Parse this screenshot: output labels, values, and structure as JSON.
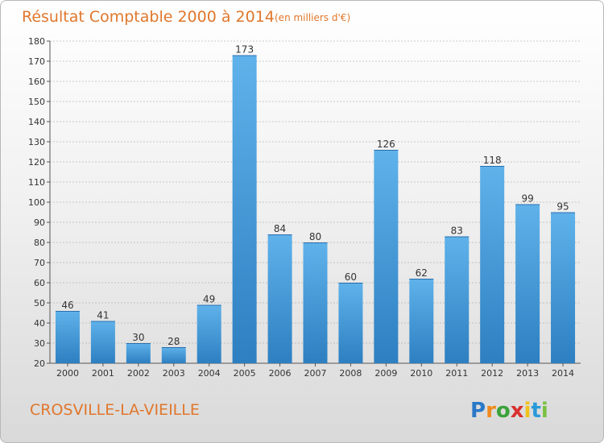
{
  "title": "Résultat Comptable 2000 à 2014",
  "subtitle": "(en milliers d'€)",
  "commune": "CROSVILLE-LA-VIEILLE",
  "logo": {
    "text": "Proxiti",
    "letter_colors": [
      "#2a78c8",
      "#f08a1c",
      "#3aa23a",
      "#d93030",
      "#f0c21c",
      "#2a9ad8",
      "#7ac043"
    ]
  },
  "colors": {
    "bar_light": "#5fb2ea",
    "bar_dark": "#2d7fc1",
    "grid": "#999999",
    "title": "#e0772c"
  },
  "chart_data": {
    "type": "bar",
    "categories": [
      "2000",
      "2001",
      "2002",
      "2003",
      "2004",
      "2005",
      "2006",
      "2007",
      "2008",
      "2009",
      "2010",
      "2011",
      "2012",
      "2013",
      "2014"
    ],
    "values": [
      46,
      41,
      30,
      28,
      49,
      173,
      84,
      80,
      60,
      126,
      62,
      83,
      118,
      99,
      95
    ],
    "ylim": [
      20,
      180
    ],
    "yticks": [
      20,
      30,
      40,
      50,
      60,
      70,
      80,
      90,
      100,
      110,
      120,
      130,
      140,
      150,
      160,
      170,
      180
    ],
    "grid": "horizontal dashed"
  }
}
